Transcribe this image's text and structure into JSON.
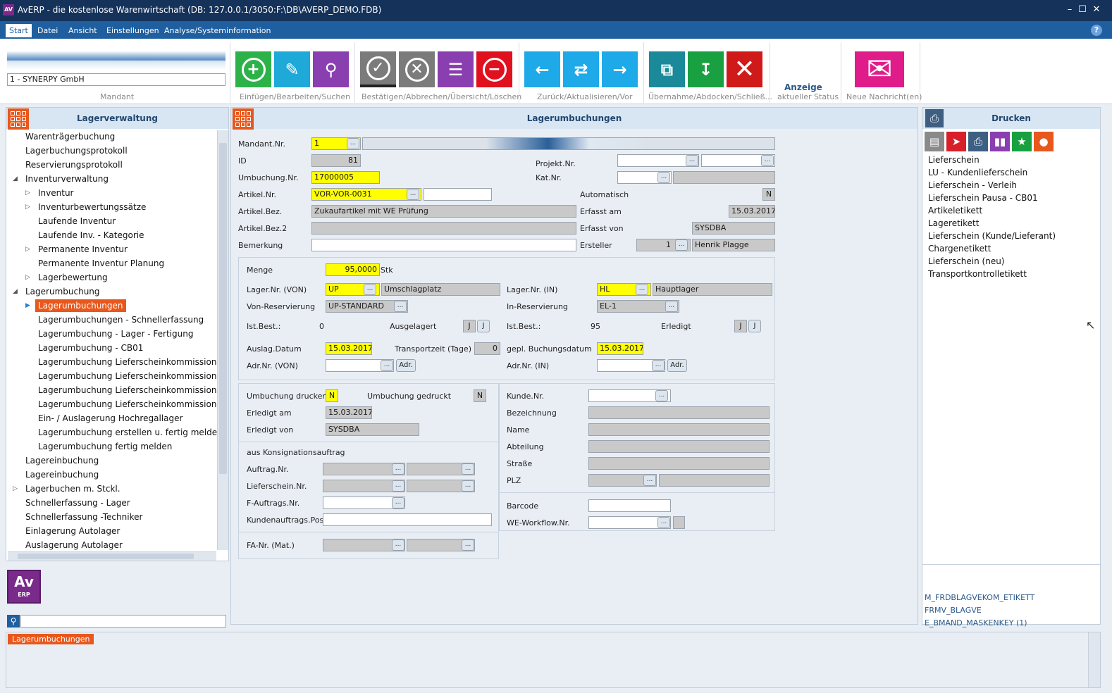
{
  "window": {
    "title": "AvERP - die kostenlose Warenwirtschaft   (DB: 127.0.0.1/3050:F:\\DB\\AVERP_DEMO.FDB)",
    "controls": [
      "–",
      "☐",
      "✕"
    ]
  },
  "menu": {
    "items": [
      "Start",
      "Datei",
      "Ansicht",
      "Einstellungen",
      "Analyse/Systeminformation"
    ],
    "help": "?"
  },
  "ribbon": {
    "mandant_value": "1 - SYNERPY GmbH",
    "groups": [
      "Mandant",
      "Einfügen/Bearbeiten/Suchen",
      "Bestätigen/Abbrechen/Übersicht/Löschen",
      "Zurück/Aktualisieren/Vor",
      "Übernahme/Abdocken/Schließ...",
      "aktueller Status",
      "Neue Nachricht(en)"
    ],
    "status_title": "Anzeige",
    "buttons": [
      {
        "icon": "add-icon",
        "color": "#2db24a",
        "glyph": "+"
      },
      {
        "icon": "edit-icon",
        "color": "#1ea9d8",
        "glyph": "✎"
      },
      {
        "icon": "search-icon",
        "color": "#8a3fb0",
        "glyph": "⌕"
      },
      {
        "icon": "confirm-icon",
        "color": "#7b7b7b",
        "glyph": "✓"
      },
      {
        "icon": "cancel-icon",
        "color": "#7b7b7b",
        "glyph": "✕"
      },
      {
        "icon": "overview-icon",
        "color": "#8a3fb0",
        "glyph": "☰"
      },
      {
        "icon": "delete-icon",
        "color": "#e0101e",
        "glyph": "−"
      },
      {
        "icon": "back-icon",
        "color": "#1ea9e8",
        "glyph": "←"
      },
      {
        "icon": "refresh-icon",
        "color": "#1ea9e8",
        "glyph": "⇄"
      },
      {
        "icon": "forward-icon",
        "color": "#1ea9e8",
        "glyph": "→"
      },
      {
        "icon": "takeover-icon",
        "color": "#1a8a9a",
        "glyph": "⧉"
      },
      {
        "icon": "undock-icon",
        "color": "#19a040",
        "glyph": "↓"
      },
      {
        "icon": "close-icon",
        "color": "#d01a1a",
        "glyph": "✕"
      },
      {
        "icon": "message-icon",
        "color": "#e01c8a",
        "glyph": "✉"
      }
    ]
  },
  "left": {
    "title": "Lagerverwaltung",
    "items": [
      "Warenträgerbuchung",
      "Lagerbuchungsprotokoll",
      "Reservierungsprotokoll",
      "Inventurverwaltung",
      "Inventur",
      "Inventurbewertungssätze",
      "Laufende Inventur",
      "Laufende Inv. - Kategorie",
      "Permanente Inventur",
      "Permanente Inventur Planung",
      "Lagerbewertung",
      "Lagerumbuchung",
      "Lagerumbuchungen",
      "Lagerumbuchungen - Schnellerfassung",
      "Lagerumbuchung - Lager - Fertigung",
      "Lagerumbuchung - CB01",
      "Lagerumbuchung Lieferscheinkommissionierung",
      "Lagerumbuchung Lieferscheinkommissionierung",
      "Lagerumbuchung Lieferscheinkommissionierung",
      "Lagerumbuchung Lieferscheinkommissionierung",
      "Ein- / Auslagerung Hochregallager",
      "Lagerumbuchung erstellen u. fertig melden",
      "Lagerumbuchung fertig melden",
      "Lagereinbuchung",
      "Lagereinbuchung",
      "Lagerbuchen m. Stckl.",
      "Schnellerfassung - Lager",
      "Schnellerfassung -Techniker",
      "Einlagerung Autolager",
      "Auslagerung Autolager"
    ],
    "logo_text": "Av",
    "logo_sub": "ERP",
    "search_value": ""
  },
  "form": {
    "title": "Lagerumbuchungen",
    "labels": {
      "mandant_nr": "Mandant.Nr.",
      "id": "ID",
      "umbuchung_nr": "Umbuchung.Nr.",
      "artikel_nr": "Artikel.Nr.",
      "artikel_bez": "Artikel.Bez.",
      "artikel_bez2": "Artikel.Bez.2",
      "bemerkung": "Bemerkung",
      "projekt_nr": "Projekt.Nr.",
      "kat_nr": "Kat.Nr.",
      "automatisch": "Automatisch",
      "erfasst_am": "Erfasst am",
      "erfasst_von": "Erfasst von",
      "ersteller": "Ersteller",
      "menge": "Menge",
      "lager_von": "Lager.Nr. (VON)",
      "von_reservierung": "Von-Reservierung",
      "ist_best_von": "Ist.Best.:",
      "ausgelagert": "Ausgelagert",
      "auslag_datum": "Auslag.Datum",
      "transportzeit": "Transportzeit (Tage)",
      "adr_von": "Adr.Nr. (VON)",
      "lager_in": "Lager.Nr. (IN)",
      "in_reservierung": "In-Reservierung",
      "ist_best_in": "Ist.Best.:",
      "erledigt": "Erledigt",
      "gepl_buchungsdatum": "gepl. Buchungsdatum",
      "adr_in": "Adr.Nr. (IN)",
      "umbuchung_drucken": "Umbuchung drucken",
      "umbuchung_gedruckt": "Umbuchung gedruckt",
      "erledigt_am": "Erledigt am",
      "erledigt_von": "Erledigt von",
      "konsignation": "aus Konsignationsauftrag",
      "auftrag_nr": "Auftrag.Nr.",
      "lieferschein_nr": "Lieferschein.Nr.",
      "f_auftrags_nr": "F-Auftrags.Nr.",
      "kundenauftrags_pos": "Kundenauftrags.Pos.",
      "fa_nr": "FA-Nr. (Mat.)",
      "kunde_nr": "Kunde.Nr.",
      "bezeichnung": "Bezeichnung",
      "name": "Name",
      "abteilung": "Abteilung",
      "strasse": "Straße",
      "plz": "PLZ",
      "barcode": "Barcode",
      "we_workflow": "WE-Workflow.Nr."
    },
    "values": {
      "mandant_nr": "1",
      "id": "81",
      "umbuchung_nr": "17000005",
      "artikel_nr": "VOR-VOR-0031",
      "artikel_bez": "Zukaufartikel mit WE Prüfung",
      "automatisch": "N",
      "erfasst_am": "15.03.2017",
      "erfasst_von": "SYSDBA",
      "ersteller_nr": "1",
      "ersteller_name": "Henrik Plagge",
      "menge": "95,0000",
      "menge_unit": "Stk",
      "lager_von": "UP",
      "lager_von_name": "Umschlagplatz",
      "von_reservierung": "UP-STANDARD",
      "ist_best_von": "0",
      "auslag_datum": "15.03.2017",
      "transportzeit": "0",
      "lager_in": "HL",
      "lager_in_name": "Hauptlager",
      "in_reservierung": "EL-1",
      "ist_best_in": "95",
      "gepl_buchungsdatum": "15.03.2017",
      "umbuchung_drucken": "N",
      "umbuchung_gedruckt": "N",
      "erledigt_am": "15.03.2017",
      "erledigt_von": "SYSDBA",
      "btn_j": "J",
      "btn_adr": "Adr.",
      "dots": "..."
    }
  },
  "right": {
    "title": "Drucken",
    "icon_names": [
      "clipboard-icon",
      "pin-icon",
      "printer-icon",
      "books-icon",
      "star-icon",
      "bulb-icon"
    ],
    "items": [
      "Lieferschein",
      "LU - Kundenlieferschein",
      "Lieferschein - Verleih",
      "Lieferschein Pausa - CB01",
      "Artikeletikett",
      "Lageretikett",
      "Lieferschein (Kunde/Lieferant)",
      "Chargenetikett",
      "Lieferschein (neu)",
      "Transportkontrolletikett"
    ],
    "mask_info": [
      "M_FRDBLAGVEKOM_ETIKETT",
      "FRMV_BLAGVE",
      "E_BMAND_MASKENKEY (1)"
    ]
  },
  "bottom": {
    "tab": "Lagerumbuchungen"
  }
}
